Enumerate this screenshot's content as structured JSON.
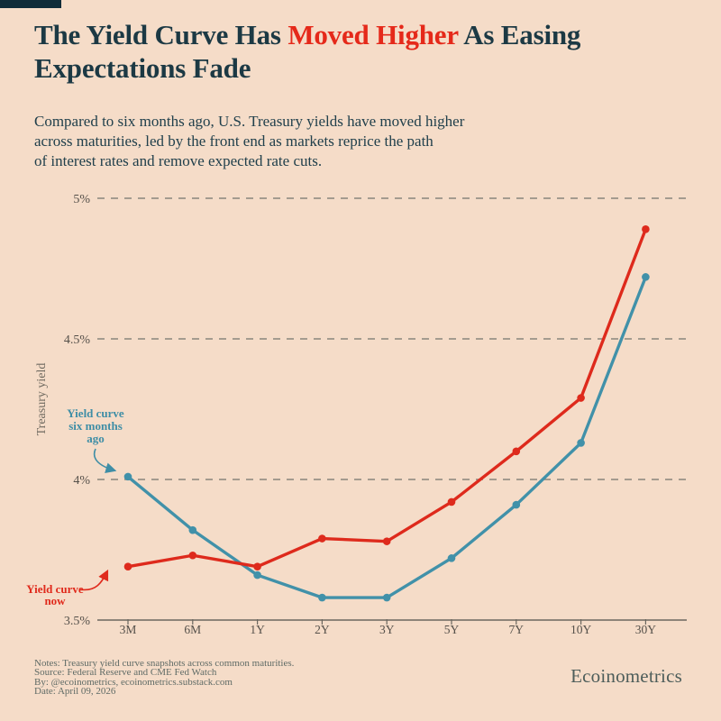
{
  "header": {
    "title": {
      "line1_prefix": "The Yield Curve Has ",
      "line1_highlight": "Moved Higher",
      "line1_suffix": " As Easing",
      "line2": "Expectations Fade",
      "highlight_color": "#e5291a"
    },
    "subtitle": "Compared to six months ago, U.S. Treasury yields have moved higher\nacross maturities, led by the front end as markets reprice the path\nof interest rates and remove expected rate cuts."
  },
  "chart_data": {
    "type": "line",
    "title": "",
    "xlabel": "",
    "ylabel": "Treasury yield",
    "categories": [
      "3M",
      "6M",
      "1Y",
      "2Y",
      "3Y",
      "5Y",
      "7Y",
      "10Y",
      "30Y"
    ],
    "series": [
      {
        "name": "Yield curve now",
        "color": "#de2a1c",
        "values": [
          3.69,
          3.73,
          3.69,
          3.79,
          3.78,
          3.92,
          4.1,
          4.29,
          4.89
        ]
      },
      {
        "name": "Yield curve six months ago",
        "color": "#4191a9",
        "values": [
          4.01,
          3.82,
          3.66,
          3.58,
          3.58,
          3.72,
          3.91,
          4.13,
          4.72
        ]
      }
    ],
    "yticks": [
      3.5,
      4,
      4.5,
      5
    ],
    "ytick_labels": [
      "3.5%",
      "4%",
      "4.5%",
      "5%"
    ],
    "ylim": [
      3.5,
      5.08
    ],
    "grid": "horizontal dashed gridlines at 4%, 4.5%, 5%; solid baseline at 3.5%",
    "legend_position": "inline annotations with arrows pointing to the 3M points"
  },
  "annotations": {
    "six_months": {
      "text": "Yield curve\nsix months\nago",
      "color": "#3f8ea6"
    },
    "now": {
      "text": "Yield curve\nnow",
      "color": "#e02a1c"
    }
  },
  "footer": {
    "notes": [
      "Notes: Treasury yield curve snapshots across common maturities.",
      "Source: Federal Reserve and CME Fed Watch",
      "By: @ecoinometrics, ecoinometrics.substack.com",
      "Date: April 09, 2026"
    ],
    "wordmark": "Ecoinometrics"
  },
  "colors": {
    "background": "#f5dcc8",
    "corner_bar": "#0f2c39",
    "title_navy": "#1c3944",
    "gridline_gray": "#8a857c",
    "axis_gray": "#6b675f"
  }
}
